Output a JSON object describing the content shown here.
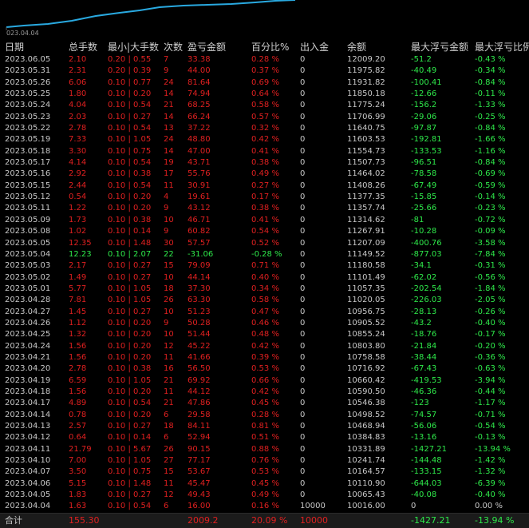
{
  "chart": {
    "date_label": "023.04.04",
    "line_color": "#29a9e0"
  },
  "colors": {
    "positive": "#e02020",
    "negative": "#2ee84a",
    "text": "#c8c8c8",
    "background": "#000000"
  },
  "table": {
    "headers": [
      "日期",
      "总手数",
      "最小|大手数",
      "次数",
      "盈亏金额",
      "百分比%",
      "出入金",
      "余额",
      "最大浮亏金额",
      "最大浮亏比例"
    ],
    "rows": [
      [
        "2023.06.05",
        "2.10",
        "0.20 | 0.55",
        "7",
        "33.38",
        "0.28 %",
        "0",
        "12009.20",
        "-51.2",
        "-0.43 %"
      ],
      [
        "2023.05.31",
        "2.31",
        "0.20 | 0.39",
        "9",
        "44.00",
        "0.37 %",
        "0",
        "11975.82",
        "-40.49",
        "-0.34 %"
      ],
      [
        "2023.05.26",
        "6.06",
        "0.10 | 0.77",
        "24",
        "81.64",
        "0.69 %",
        "0",
        "11931.82",
        "-100.41",
        "-0.84 %"
      ],
      [
        "2023.05.25",
        "1.80",
        "0.10 | 0.20",
        "14",
        "74.94",
        "0.64 %",
        "0",
        "11850.18",
        "-12.66",
        "-0.11 %"
      ],
      [
        "2023.05.24",
        "4.04",
        "0.10 | 0.54",
        "21",
        "68.25",
        "0.58 %",
        "0",
        "11775.24",
        "-156.2",
        "-1.33 %"
      ],
      [
        "2023.05.23",
        "2.03",
        "0.10 | 0.27",
        "14",
        "66.24",
        "0.57 %",
        "0",
        "11706.99",
        "-29.06",
        "-0.25 %"
      ],
      [
        "2023.05.22",
        "2.78",
        "0.10 | 0.54",
        "13",
        "37.22",
        "0.32 %",
        "0",
        "11640.75",
        "-97.87",
        "-0.84 %"
      ],
      [
        "2023.05.19",
        "7.33",
        "0.10 | 1.05",
        "24",
        "48.80",
        "0.42 %",
        "0",
        "11603.53",
        "-192.81",
        "-1.66 %"
      ],
      [
        "2023.05.18",
        "3.30",
        "0.10 | 0.75",
        "14",
        "47.00",
        "0.41 %",
        "0",
        "11554.73",
        "-133.53",
        "-1.16 %"
      ],
      [
        "2023.05.17",
        "4.14",
        "0.10 | 0.54",
        "19",
        "43.71",
        "0.38 %",
        "0",
        "11507.73",
        "-96.51",
        "-0.84 %"
      ],
      [
        "2023.05.16",
        "2.92",
        "0.10 | 0.38",
        "17",
        "55.76",
        "0.49 %",
        "0",
        "11464.02",
        "-78.58",
        "-0.69 %"
      ],
      [
        "2023.05.15",
        "2.44",
        "0.10 | 0.54",
        "11",
        "30.91",
        "0.27 %",
        "0",
        "11408.26",
        "-67.49",
        "-0.59 %"
      ],
      [
        "2023.05.12",
        "0.54",
        "0.10 | 0.20",
        "4",
        "19.61",
        "0.17 %",
        "0",
        "11377.35",
        "-15.85",
        "-0.14 %"
      ],
      [
        "2023.05.11",
        "1.22",
        "0.10 | 0.20",
        "9",
        "43.12",
        "0.38 %",
        "0",
        "11357.74",
        "-25.66",
        "-0.23 %"
      ],
      [
        "2023.05.09",
        "1.73",
        "0.10 | 0.38",
        "10",
        "46.71",
        "0.41 %",
        "0",
        "11314.62",
        "-81",
        "-0.72 %"
      ],
      [
        "2023.05.08",
        "1.02",
        "0.10 | 0.14",
        "9",
        "60.82",
        "0.54 %",
        "0",
        "11267.91",
        "-10.28",
        "-0.09 %"
      ],
      [
        "2023.05.05",
        "12.35",
        "0.10 | 1.48",
        "30",
        "57.57",
        "0.52 %",
        "0",
        "11207.09",
        "-400.76",
        "-3.58 %"
      ],
      [
        "2023.05.04",
        "12.23",
        "0.10 | 2.07",
        "22",
        "-31.06",
        "-0.28 %",
        "0",
        "11149.52",
        "-877.03",
        "-7.84 %"
      ],
      [
        "2023.05.03",
        "2.17",
        "0.10 | 0.27",
        "15",
        "79.09",
        "0.71 %",
        "0",
        "11180.58",
        "-34.1",
        "-0.31 %"
      ],
      [
        "2023.05.02",
        "1.49",
        "0.10 | 0.27",
        "10",
        "44.14",
        "0.40 %",
        "0",
        "11101.49",
        "-62.02",
        "-0.56 %"
      ],
      [
        "2023.05.01",
        "5.77",
        "0.10 | 1.05",
        "18",
        "37.30",
        "0.34 %",
        "0",
        "11057.35",
        "-202.54",
        "-1.84 %"
      ],
      [
        "2023.04.28",
        "7.81",
        "0.10 | 1.05",
        "26",
        "63.30",
        "0.58 %",
        "0",
        "11020.05",
        "-226.03",
        "-2.05 %"
      ],
      [
        "2023.04.27",
        "1.45",
        "0.10 | 0.27",
        "10",
        "51.23",
        "0.47 %",
        "0",
        "10956.75",
        "-28.13",
        "-0.26 %"
      ],
      [
        "2023.04.26",
        "1.12",
        "0.10 | 0.20",
        "9",
        "50.28",
        "0.46 %",
        "0",
        "10905.52",
        "-43.2",
        "-0.40 %"
      ],
      [
        "2023.04.25",
        "1.32",
        "0.10 | 0.20",
        "10",
        "51.44",
        "0.48 %",
        "0",
        "10855.24",
        "-18.76",
        "-0.17 %"
      ],
      [
        "2023.04.24",
        "1.56",
        "0.10 | 0.20",
        "12",
        "45.22",
        "0.42 %",
        "0",
        "10803.80",
        "-21.84",
        "-0.20 %"
      ],
      [
        "2023.04.21",
        "1.56",
        "0.10 | 0.20",
        "11",
        "41.66",
        "0.39 %",
        "0",
        "10758.58",
        "-38.44",
        "-0.36 %"
      ],
      [
        "2023.04.20",
        "2.78",
        "0.10 | 0.38",
        "16",
        "56.50",
        "0.53 %",
        "0",
        "10716.92",
        "-67.43",
        "-0.63 %"
      ],
      [
        "2023.04.19",
        "6.59",
        "0.10 | 1.05",
        "21",
        "69.92",
        "0.66 %",
        "0",
        "10660.42",
        "-419.53",
        "-3.94 %"
      ],
      [
        "2023.04.18",
        "1.56",
        "0.10 | 0.20",
        "11",
        "44.12",
        "0.42 %",
        "0",
        "10590.50",
        "-46.36",
        "-0.44 %"
      ],
      [
        "2023.04.17",
        "4.89",
        "0.10 | 0.54",
        "21",
        "47.86",
        "0.45 %",
        "0",
        "10546.38",
        "-123",
        "-1.17 %"
      ],
      [
        "2023.04.14",
        "0.78",
        "0.10 | 0.20",
        "6",
        "29.58",
        "0.28 %",
        "0",
        "10498.52",
        "-74.57",
        "-0.71 %"
      ],
      [
        "2023.04.13",
        "2.57",
        "0.10 | 0.27",
        "18",
        "84.11",
        "0.81 %",
        "0",
        "10468.94",
        "-56.06",
        "-0.54 %"
      ],
      [
        "2023.04.12",
        "0.64",
        "0.10 | 0.14",
        "6",
        "52.94",
        "0.51 %",
        "0",
        "10384.83",
        "-13.16",
        "-0.13 %"
      ],
      [
        "2023.04.11",
        "21.79",
        "0.10 | 5.67",
        "26",
        "90.15",
        "0.88 %",
        "0",
        "10331.89",
        "-1427.21",
        "-13.94 %"
      ],
      [
        "2023.04.10",
        "7.00",
        "0.10 | 1.05",
        "27",
        "77.17",
        "0.76 %",
        "0",
        "10241.74",
        "-144.48",
        "-1.42 %"
      ],
      [
        "2023.04.07",
        "3.50",
        "0.10 | 0.75",
        "15",
        "53.67",
        "0.53 %",
        "0",
        "10164.57",
        "-133.15",
        "-1.32 %"
      ],
      [
        "2023.04.06",
        "5.15",
        "0.10 | 1.48",
        "11",
        "45.47",
        "0.45 %",
        "0",
        "10110.90",
        "-644.03",
        "-6.39 %"
      ],
      [
        "2023.04.05",
        "1.83",
        "0.10 | 0.27",
        "12",
        "49.43",
        "0.49 %",
        "0",
        "10065.43",
        "-40.08",
        "-0.40 %"
      ],
      [
        "2023.04.04",
        "1.63",
        "0.10 | 0.54",
        "6",
        "16.00",
        "0.16 %",
        "10000",
        "10016.00",
        "0",
        "0.00 %"
      ]
    ],
    "total": [
      "合计",
      "155.30",
      "",
      "",
      "2009.2",
      "20.09 %",
      "10000",
      "",
      "-1427.21",
      "-13.94 %"
    ]
  }
}
